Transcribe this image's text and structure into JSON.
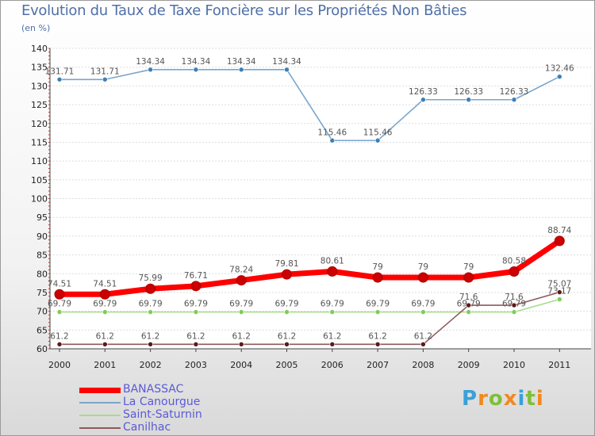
{
  "chart_data": {
    "type": "line",
    "title": "Evolution du Taux de Taxe Foncière sur les Propriétés Non Bâties",
    "ylabel": "(en %)",
    "xlabel": "",
    "ylim": [
      60,
      140
    ],
    "yticks": [
      60,
      65,
      70,
      75,
      80,
      85,
      90,
      95,
      100,
      105,
      110,
      115,
      120,
      125,
      130,
      135,
      140
    ],
    "categories": [
      "2000",
      "2001",
      "2002",
      "2003",
      "2004",
      "2005",
      "2006",
      "2007",
      "2008",
      "2009",
      "2010",
      "2011"
    ],
    "series": [
      {
        "name": "BANASSAC",
        "color": "#ff0000",
        "marker": "#cc0000",
        "values": [
          74.51,
          74.51,
          75.99,
          76.71,
          78.24,
          79.81,
          80.61,
          79,
          79,
          79,
          80.58,
          88.74
        ],
        "labels": [
          "74.51",
          "74.51",
          "75.99",
          "76.71",
          "78.24",
          "79.81",
          "80.61",
          "79",
          "79",
          "79",
          "80.58",
          "88.74"
        ]
      },
      {
        "name": "La Canourgue",
        "color": "#7aa6cc",
        "marker": "#3f7fb5",
        "values": [
          131.71,
          131.71,
          134.34,
          134.34,
          134.34,
          134.34,
          115.46,
          115.46,
          126.33,
          126.33,
          126.33,
          132.46
        ],
        "labels": [
          "131.71",
          "131.71",
          "134.34",
          "134.34",
          "134.34",
          "134.34",
          "115.46",
          "115.46",
          "126.33",
          "126.33",
          "126.33",
          "132.46"
        ]
      },
      {
        "name": "Saint-Saturnin",
        "color": "#a8dc8a",
        "marker": "#7fcc5a",
        "values": [
          69.79,
          69.79,
          69.79,
          69.79,
          69.79,
          69.79,
          69.79,
          69.79,
          69.79,
          69.79,
          69.79,
          73.17
        ],
        "labels": [
          "69.79",
          "69.79",
          "69.79",
          "69.79",
          "69.79",
          "69.79",
          "69.79",
          "69.79",
          "69.79",
          "69.79",
          "69.79",
          "73.17"
        ]
      },
      {
        "name": "Canilhac",
        "color": "#8e5a5a",
        "marker": "#5a1a1a",
        "values": [
          61.2,
          61.2,
          61.2,
          61.2,
          61.2,
          61.2,
          61.2,
          61.2,
          61.2,
          71.6,
          71.6,
          75.07
        ],
        "labels": [
          "61.2",
          "61.2",
          "61.2",
          "61.2",
          "61.2",
          "61.2",
          "61.2",
          "61.2",
          "61.2",
          "71.6",
          "71.6",
          "75.07"
        ]
      }
    ],
    "legend_position": "bottom-left"
  },
  "logo": {
    "letters": [
      "P",
      "r",
      "o",
      "x",
      "i",
      "t",
      "i"
    ],
    "colors": [
      "#3aa0d8",
      "#f08a1c",
      "#7fbf3a",
      "#f08a1c",
      "#3aa0d8",
      "#7fbf3a",
      "#f08a1c"
    ]
  }
}
